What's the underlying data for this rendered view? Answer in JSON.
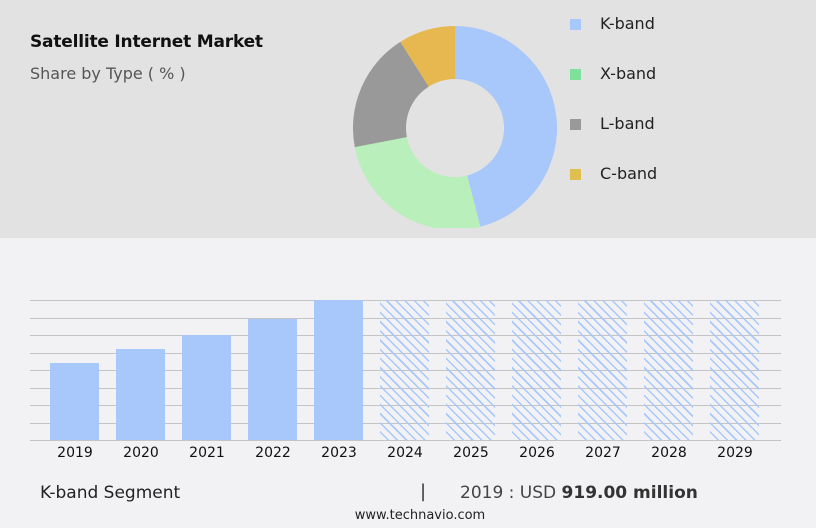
{
  "header": {
    "title": "Satellite Internet Market",
    "subtitle": "Share by Type ( % )"
  },
  "legend": [
    {
      "label": "K-band",
      "color": "#a8c8fb"
    },
    {
      "label": "X-band",
      "color": "#7ee09a"
    },
    {
      "label": "L-band",
      "color": "#999999"
    },
    {
      "label": "C-band",
      "color": "#dfbf4f"
    }
  ],
  "footer": {
    "segment": "K-band Segment",
    "separator": "|",
    "value_prefix": "2019 : USD ",
    "value_bold": "919.00 million",
    "url": "www.technavio.com"
  },
  "chart_data": [
    {
      "type": "pie",
      "variant": "donut",
      "title": "Satellite Internet Market",
      "subtitle": "Share by Type ( % )",
      "categories": [
        "K-band",
        "X-band",
        "L-band",
        "C-band"
      ],
      "values": [
        46,
        26,
        19,
        9
      ],
      "colors": [
        "#a8c8fb",
        "#b8efbb",
        "#999999",
        "#e6b84f"
      ],
      "legend_position": "right"
    },
    {
      "type": "bar",
      "title": "K-band Segment",
      "categories": [
        "2019",
        "2020",
        "2021",
        "2022",
        "2023",
        "2024",
        "2025",
        "2026",
        "2027",
        "2028",
        "2029"
      ],
      "values": [
        919,
        1086,
        1253,
        1444,
        1671,
        null,
        null,
        null,
        null,
        null,
        null
      ],
      "forecast_categories": [
        "2024",
        "2025",
        "2026",
        "2027",
        "2028",
        "2029"
      ],
      "forecast_style": "hatched, full height placeholder",
      "annotation": "2019 : USD 919.00 million",
      "xlabel": "",
      "ylabel": "",
      "grid": true,
      "gridlines": 9,
      "bar_color": "#a8c8fb"
    }
  ]
}
